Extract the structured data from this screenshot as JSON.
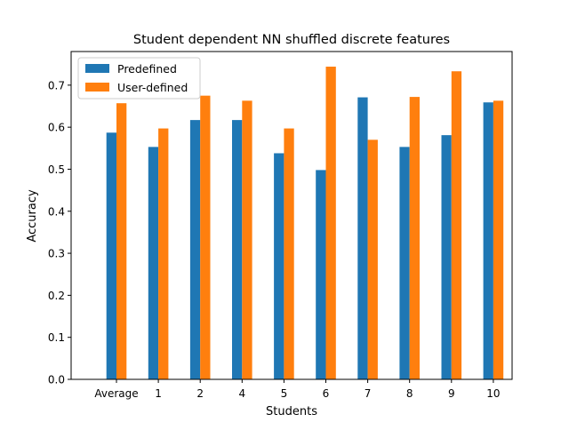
{
  "chart_data": {
    "type": "bar",
    "title": "Student dependent NN shuffled discrete features",
    "xlabel": "Students",
    "ylabel": "Accuracy",
    "categories": [
      "Average",
      "1",
      "2",
      "4",
      "5",
      "6",
      "7",
      "8",
      "9",
      "10"
    ],
    "series": [
      {
        "name": "Predefined",
        "color": "#1f77b4",
        "values": [
          0.587,
          0.553,
          0.617,
          0.617,
          0.538,
          0.498,
          0.671,
          0.553,
          0.581,
          0.659
        ]
      },
      {
        "name": "User-defined",
        "color": "#ff7f0e",
        "values": [
          0.657,
          0.597,
          0.675,
          0.663,
          0.597,
          0.744,
          0.57,
          0.672,
          0.733,
          0.663
        ]
      }
    ],
    "ylim": [
      0,
      0.78
    ],
    "yticks": [
      "0.0",
      "0.1",
      "0.2",
      "0.3",
      "0.4",
      "0.5",
      "0.6",
      "0.7"
    ],
    "grid": false,
    "legend": "top-left"
  }
}
